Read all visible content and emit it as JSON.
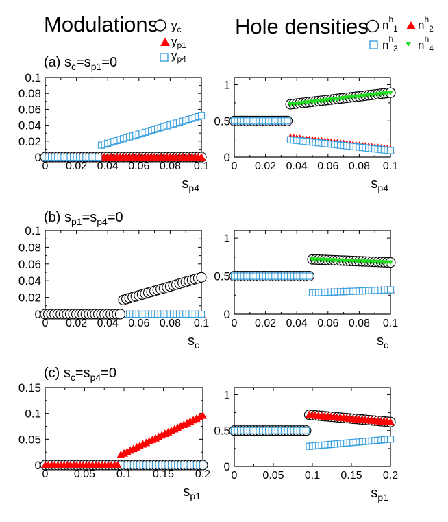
{
  "headers": {
    "left_title": "Modulations",
    "right_title": "Hole densities"
  },
  "legend_left": [
    {
      "label": "y",
      "sub": "c",
      "marker": "circle",
      "color": "#000000"
    },
    {
      "label": "y",
      "sub": "p1",
      "marker": "triangle",
      "color": "#ff0000"
    },
    {
      "label": "y",
      "sub": "p4",
      "marker": "square",
      "color": "#39a0e0"
    }
  ],
  "legend_right": [
    {
      "label": "n",
      "sup": "h",
      "sub": "1",
      "marker": "circle",
      "color": "#000000"
    },
    {
      "label": "n",
      "sup": "h",
      "sub": "2",
      "marker": "triangle",
      "color": "#ff0000"
    },
    {
      "label": "n",
      "sup": "h",
      "sub": "3",
      "marker": "square",
      "color": "#39a0e0"
    },
    {
      "label": "n",
      "sup": "h",
      "sub": "4",
      "marker": "triangle-down",
      "color": "#22dd22"
    }
  ],
  "colors": {
    "yc": "#000000",
    "yp1": "#ff0000",
    "yp4": "#39a0e0",
    "n4": "#22dd22"
  },
  "chart_data": [
    {
      "id": "a-left",
      "panel": "(a)",
      "type": "scatter",
      "title_main": "(a) s",
      "title_sub1": "c",
      "title_mid": "=s",
      "title_sub2": "p1",
      "title_end": "=0",
      "xlabel": "s",
      "xlabel_sub": "p4",
      "xlim": [
        0,
        0.1
      ],
      "ylim": [
        0,
        0.1
      ],
      "xticks": [
        "0",
        "0.02",
        "0.04",
        "0.06",
        "0.08",
        "0.1"
      ],
      "yticks": [
        "0",
        "0.02",
        "0.04",
        "0.06",
        "0.08",
        "0.1"
      ],
      "x": {
        "start": 0,
        "step": 0.002,
        "count": 51
      },
      "series": [
        {
          "name": "y_c",
          "marker": "circle",
          "const": 0
        },
        {
          "name": "y_p1",
          "marker": "triangle",
          "const": 0
        },
        {
          "name": "y_p4",
          "marker": "square",
          "jump": 0.036,
          "before": 0,
          "after_start": 0.015,
          "after_end": 0.052
        }
      ]
    },
    {
      "id": "a-right",
      "panel": "(a)",
      "type": "scatter",
      "xlabel": "s",
      "xlabel_sub": "p4",
      "xlim": [
        0,
        0.1
      ],
      "ylim": [
        0,
        1.1
      ],
      "xticks": [
        "0",
        "0.02",
        "0.04",
        "0.06",
        "0.08",
        "0.1"
      ],
      "yticks": [
        "0",
        "0.5",
        "1"
      ],
      "x": {
        "start": 0,
        "step": 0.002,
        "count": 51
      },
      "series": [
        {
          "name": "n1",
          "marker": "circle",
          "jump": 0.036,
          "before": 0.5,
          "after_start": 0.73,
          "after_end": 0.89
        },
        {
          "name": "n4",
          "marker": "triangle-down",
          "jump": 0.036,
          "before": 0.5,
          "after_start": 0.73,
          "after_end": 0.89
        },
        {
          "name": "n2",
          "marker": "triangle",
          "jump": 0.036,
          "before": 0.5,
          "after_start": 0.27,
          "after_end": 0.11
        },
        {
          "name": "n3",
          "marker": "square",
          "jump": 0.036,
          "before": 0.5,
          "after_start": 0.24,
          "after_end": 0.09
        }
      ]
    },
    {
      "id": "b-left",
      "panel": "(b)",
      "type": "scatter",
      "title_main": "(b) s",
      "title_sub1": "p1",
      "title_mid": "=s",
      "title_sub2": "p4",
      "title_end": "=0",
      "xlabel": "s",
      "xlabel_sub": "c",
      "xlim": [
        0,
        0.1
      ],
      "ylim": [
        0,
        0.1
      ],
      "xticks": [
        "0",
        "0.02",
        "0.04",
        "0.06",
        "0.08",
        "0.1"
      ],
      "yticks": [
        "0",
        "0.02",
        "0.04",
        "0.06",
        "0.08",
        "0.1"
      ],
      "x": {
        "start": 0,
        "step": 0.002,
        "count": 51
      },
      "series": [
        {
          "name": "y_p1",
          "marker": "triangle",
          "const": 0
        },
        {
          "name": "y_p4",
          "marker": "square",
          "const": 0
        },
        {
          "name": "y_c",
          "marker": "circle",
          "jump": 0.05,
          "before": 0,
          "after_start": 0.017,
          "after_end": 0.044
        }
      ]
    },
    {
      "id": "b-right",
      "panel": "(b)",
      "type": "scatter",
      "xlabel": "s",
      "xlabel_sub": "c",
      "xlim": [
        0,
        0.1
      ],
      "ylim": [
        0,
        1.1
      ],
      "xticks": [
        "0",
        "0.02",
        "0.04",
        "0.06",
        "0.08",
        "0.1"
      ],
      "yticks": [
        "0",
        "0.5",
        "1"
      ],
      "x": {
        "start": 0,
        "step": 0.002,
        "count": 51
      },
      "series": [
        {
          "name": "n1",
          "marker": "circle",
          "jump": 0.05,
          "before": 0.5,
          "after_start": 0.72,
          "after_end": 0.68
        },
        {
          "name": "n4",
          "marker": "triangle-down",
          "jump": 0.05,
          "before": 0.5,
          "after_start": 0.72,
          "after_end": 0.68
        },
        {
          "name": "n2",
          "marker": "triangle",
          "jump": 0.05,
          "before": 0.5,
          "after_start": 0.28,
          "after_end": 0.32
        },
        {
          "name": "n3",
          "marker": "square",
          "jump": 0.05,
          "before": 0.5,
          "after_start": 0.28,
          "after_end": 0.32
        }
      ]
    },
    {
      "id": "c-left",
      "panel": "(c)",
      "type": "scatter",
      "title_main": "(c) s",
      "title_sub1": "c",
      "title_mid": "=s",
      "title_sub2": "p4",
      "title_end": "=0",
      "xlabel": "s",
      "xlabel_sub": "p1",
      "xlim": [
        0,
        0.2
      ],
      "ylim": [
        0,
        0.15
      ],
      "xticks": [
        "0",
        "0.05",
        "0.1",
        "0.15",
        "0.2"
      ],
      "yticks": [
        "0",
        "0.05",
        "0.1",
        "0.15"
      ],
      "x": {
        "start": 0,
        "step": 0.004,
        "count": 51
      },
      "series": [
        {
          "name": "y_c",
          "marker": "circle",
          "const": 0
        },
        {
          "name": "y_p4",
          "marker": "square",
          "const": 0
        },
        {
          "name": "y_p1",
          "marker": "triangle",
          "jump": 0.096,
          "before": 0,
          "after_start": 0.02,
          "after_end": 0.096
        }
      ]
    },
    {
      "id": "c-right",
      "panel": "(c)",
      "type": "scatter",
      "xlabel": "s",
      "xlabel_sub": "p1",
      "xlim": [
        0,
        0.2
      ],
      "ylim": [
        0,
        1.1
      ],
      "xticks": [
        "0",
        "0.05",
        "0.1",
        "0.15",
        "0.2"
      ],
      "yticks": [
        "0",
        "0.5",
        "1"
      ],
      "x": {
        "start": 0,
        "step": 0.004,
        "count": 51
      },
      "series": [
        {
          "name": "n1",
          "marker": "circle",
          "jump": 0.096,
          "before": 0.5,
          "after_start": 0.72,
          "after_end": 0.62
        },
        {
          "name": "n2",
          "marker": "triangle",
          "jump": 0.096,
          "before": 0.5,
          "after_start": 0.72,
          "after_end": 0.62
        },
        {
          "name": "n4",
          "marker": "triangle-down",
          "jump": 0.096,
          "before": 0.5,
          "after_start": 0.28,
          "after_end": 0.38
        },
        {
          "name": "n3",
          "marker": "square",
          "jump": 0.096,
          "before": 0.5,
          "after_start": 0.28,
          "after_end": 0.38
        }
      ]
    }
  ]
}
